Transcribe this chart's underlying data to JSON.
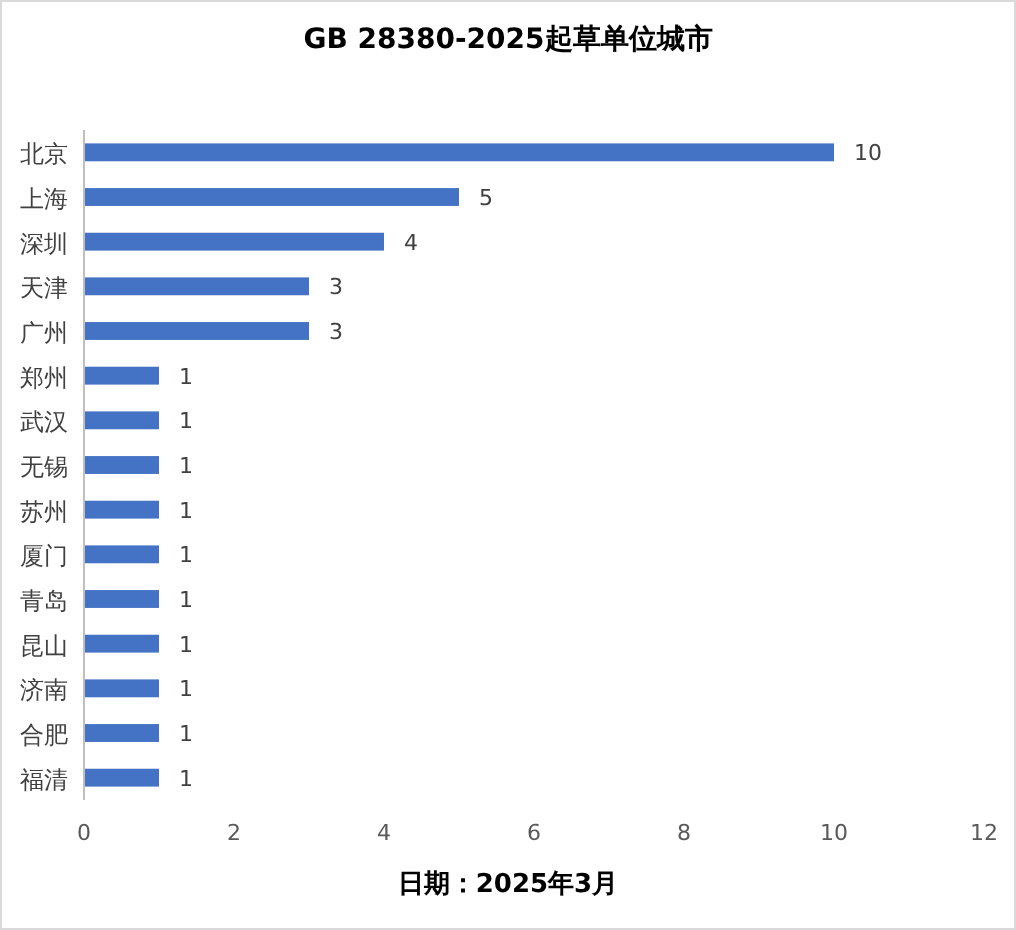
{
  "chart_data": {
    "type": "bar",
    "orientation": "horizontal",
    "title": "GB 28380-2025起草单位城市",
    "categories": [
      "北京",
      "上海",
      "深圳",
      "天津",
      "广州",
      "郑州",
      "武汉",
      "无锡",
      "苏州",
      "厦门",
      "青岛",
      "昆山",
      "济南",
      "合肥",
      "福清"
    ],
    "values": [
      10,
      5,
      4,
      3,
      3,
      1,
      1,
      1,
      1,
      1,
      1,
      1,
      1,
      1,
      1
    ],
    "color": "#4472c4",
    "xlim": [
      0,
      12
    ],
    "xticks": [
      0,
      2,
      4,
      6,
      8,
      10,
      12
    ],
    "data_labels": true,
    "grid": false,
    "annotations": [
      "日期：2025年3月"
    ]
  }
}
